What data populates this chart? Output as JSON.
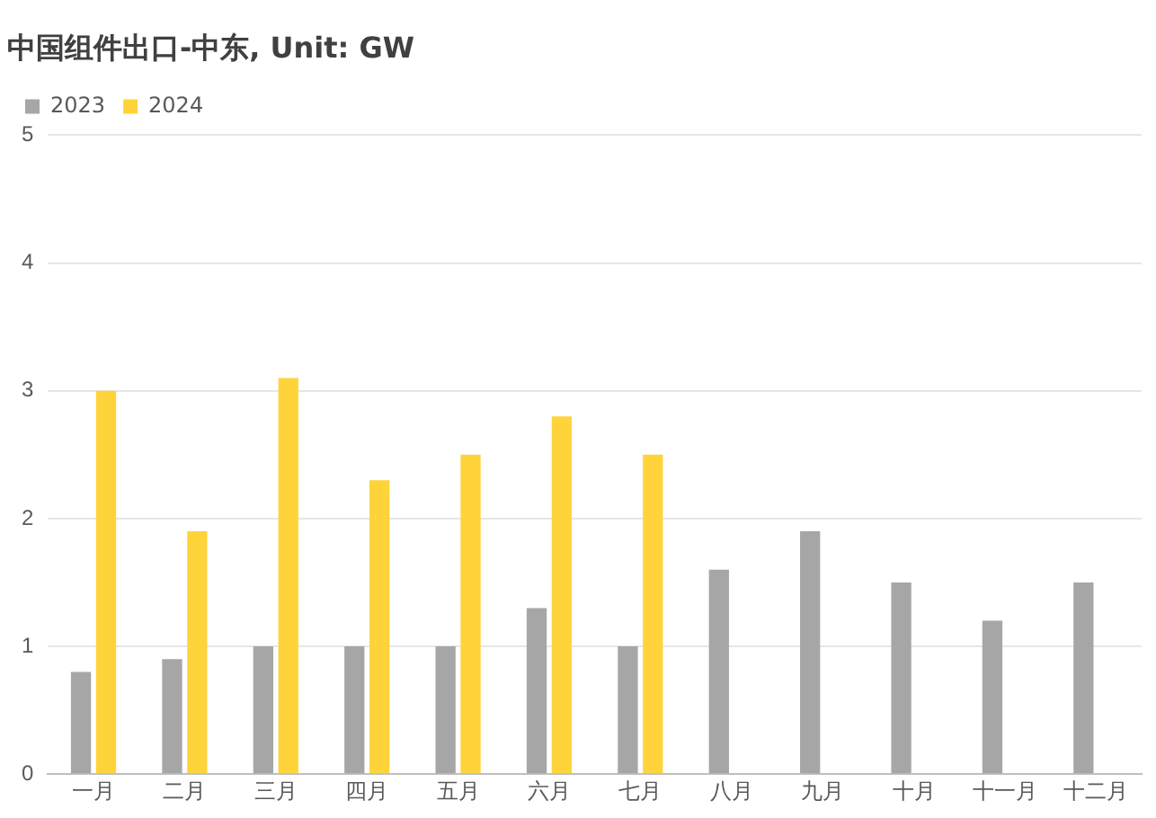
{
  "chart_data": {
    "type": "bar",
    "title": "中国组件出口-中东, Unit: GW",
    "categories": [
      "一月",
      "二月",
      "三月",
      "四月",
      "五月",
      "六月",
      "七月",
      "八月",
      "九月",
      "十月",
      "十一月",
      "十二月"
    ],
    "series": [
      {
        "name": "2023",
        "color": "#a6a6a6",
        "values": [
          0.8,
          0.9,
          1.0,
          1.0,
          1.0,
          1.3,
          1.0,
          1.6,
          1.9,
          1.5,
          1.2,
          1.5
        ]
      },
      {
        "name": "2024",
        "color": "#ffd43b",
        "values": [
          3.0,
          1.9,
          3.1,
          2.3,
          2.5,
          2.8,
          2.5,
          null,
          null,
          null,
          null,
          null
        ]
      }
    ],
    "ylim": [
      0,
      5
    ],
    "yticks": [
      0,
      1,
      2,
      3,
      4,
      5
    ],
    "grid": "y",
    "legend": "top left"
  }
}
